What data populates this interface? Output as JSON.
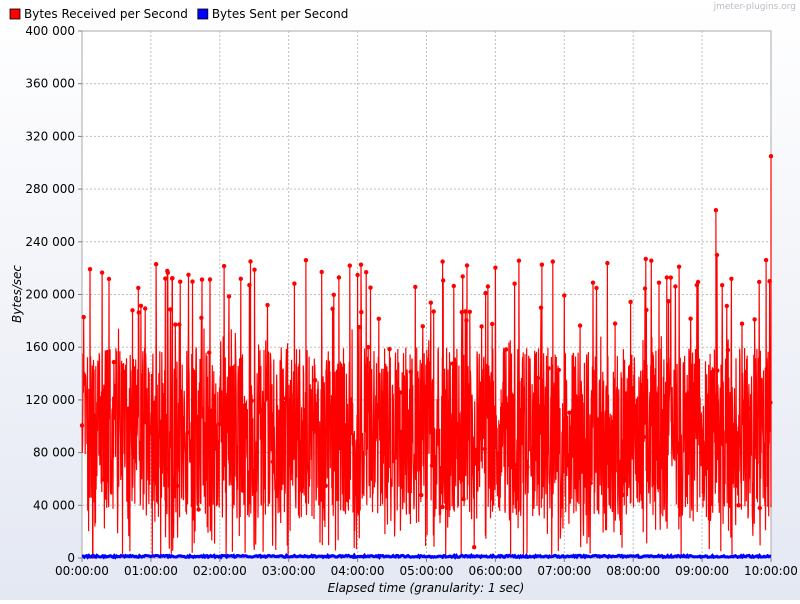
{
  "watermark": "jmeter-plugins.org",
  "chart_data": {
    "type": "line",
    "xlabel": "Elapsed time (granularity: 1 sec)",
    "ylabel": "Bytes/sec",
    "x_tick_labels": [
      "00:00:00",
      "01:00:00",
      "02:00:00",
      "03:00:00",
      "04:00:00",
      "05:00:00",
      "06:00:00",
      "07:00:00",
      "08:00:00",
      "09:00:00",
      "10:00:00"
    ],
    "y_tick_values": [
      0,
      40000,
      80000,
      120000,
      160000,
      200000,
      240000,
      280000,
      320000,
      360000,
      400000
    ],
    "y_tick_labels": [
      "0",
      "40 000",
      "80 000",
      "120 000",
      "160 000",
      "200 000",
      "240 000",
      "280 000",
      "320 000",
      "360 000",
      "400 000"
    ],
    "xlim_seconds": [
      0,
      36000
    ],
    "ylim": [
      0,
      400000
    ],
    "grid": true,
    "legend_position": "top-left",
    "series": [
      {
        "name": "Bytes Received per Second",
        "color": "#ff0000",
        "summary": {
          "typical_range": [
            30000,
            160000
          ],
          "frequent_peaks": [
            180000,
            227000
          ]
        },
        "notable_points": [
          {
            "x": "00:49:00",
            "y": 205000
          },
          {
            "x": "03:15:00",
            "y": 226000
          },
          {
            "x": "05:14:00",
            "y": 225000
          },
          {
            "x": "06:50:00",
            "y": 225000
          },
          {
            "x": "08:11:00",
            "y": 227000
          },
          {
            "x": "09:12:00",
            "y": 264000
          },
          {
            "x": "09:13:00",
            "y": 230000
          },
          {
            "x": "10:00:00",
            "y": 305000
          }
        ]
      },
      {
        "name": "Bytes Sent per Second",
        "color": "#0000ff",
        "summary": {
          "typical_range": [
            500,
            2000
          ]
        }
      }
    ]
  }
}
